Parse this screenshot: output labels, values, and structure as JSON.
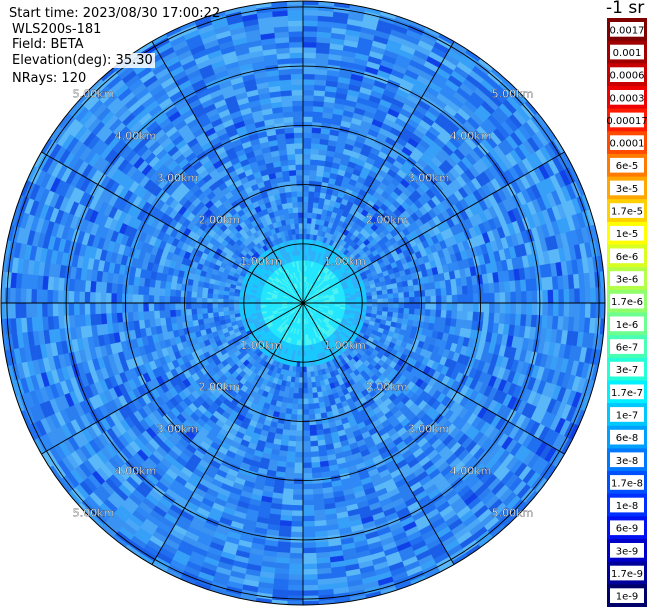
{
  "info": {
    "start_time": "Start time: 2023/08/30 17:00:22",
    "instrument": "WLS200s-181",
    "field": "Field: BETA",
    "elevation": "Elevation(deg): 35.30",
    "nrays": "NRays: 120"
  },
  "legend": {
    "unit": "-1 sr",
    "levels": [
      {
        "label": "0.0017",
        "color": "#7f0000"
      },
      {
        "label": "0.001",
        "color": "#a00000"
      },
      {
        "label": "0.0006",
        "color": "#c80000"
      },
      {
        "label": "0.0003",
        "color": "#ee0000"
      },
      {
        "label": "0.00017",
        "color": "#ff1a00"
      },
      {
        "label": "0.0001",
        "color": "#ff4a00"
      },
      {
        "label": "6e-5",
        "color": "#ff7a00"
      },
      {
        "label": "3e-5",
        "color": "#ffa600"
      },
      {
        "label": "1.7e-5",
        "color": "#ffd000"
      },
      {
        "label": "1e-5",
        "color": "#ffff00"
      },
      {
        "label": "6e-6",
        "color": "#d8ff20"
      },
      {
        "label": "3e-6",
        "color": "#b4ff48"
      },
      {
        "label": "1.7e-6",
        "color": "#90ff6c"
      },
      {
        "label": "1e-6",
        "color": "#6cff90"
      },
      {
        "label": "6e-7",
        "color": "#48ffb4"
      },
      {
        "label": "3e-7",
        "color": "#24ffd8"
      },
      {
        "label": "1.7e-7",
        "color": "#00f0ff"
      },
      {
        "label": "1e-7",
        "color": "#00c8ff"
      },
      {
        "label": "6e-8",
        "color": "#00a0ff"
      },
      {
        "label": "3e-8",
        "color": "#0078ff"
      },
      {
        "label": "1.7e-8",
        "color": "#0050ff"
      },
      {
        "label": "1e-8",
        "color": "#0030ff"
      },
      {
        "label": "6e-9",
        "color": "#0010f0"
      },
      {
        "label": "3e-9",
        "color": "#0000c8"
      },
      {
        "label": "1.7e-9",
        "color": "#00009a"
      },
      {
        "label": "1e-9",
        "color": "#00006a"
      }
    ]
  },
  "chart_data": {
    "type": "heatmap",
    "projection": "polar-ppi",
    "rays": 120,
    "range_rings_km": [
      1,
      2,
      3,
      4,
      5
    ],
    "ring_labels": [
      "1.00km",
      "2.00km",
      "3.00km",
      "4.00km",
      "5.00km"
    ],
    "max_range_km": 5.1,
    "spokes_deg": [
      0,
      30,
      60,
      90,
      120,
      150,
      180,
      210,
      240,
      270,
      300,
      330
    ],
    "colors": {
      "background_field": "#2a7ef0",
      "near_field": "#1ad8ff",
      "grid": "#000000"
    }
  }
}
